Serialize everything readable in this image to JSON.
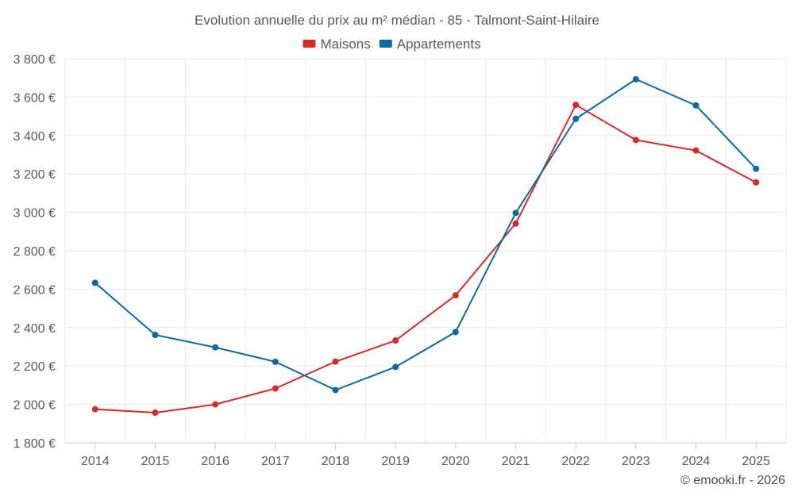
{
  "chart_data": {
    "type": "line",
    "title": "Evolution annuelle du prix au m² médian - 85 - Talmont-Saint-Hilaire",
    "xlabel": "",
    "ylabel": "",
    "categories": [
      "2014",
      "2015",
      "2016",
      "2017",
      "2018",
      "2019",
      "2020",
      "2021",
      "2022",
      "2023",
      "2024",
      "2025"
    ],
    "series": [
      {
        "name": "Maisons",
        "color": "#d42a2a",
        "values": [
          1975,
          1957,
          2000,
          2083,
          2223,
          2333,
          2568,
          2942,
          3560,
          3377,
          3322,
          3156
        ]
      },
      {
        "name": "Appartements",
        "color": "#0b6aa0",
        "values": [
          2633,
          2362,
          2297,
          2222,
          2075,
          2195,
          2377,
          2997,
          3487,
          3693,
          3557,
          3227
        ]
      }
    ],
    "ylim": [
      1800,
      3800
    ],
    "yticks": [
      1800,
      2000,
      2200,
      2400,
      2600,
      2800,
      3000,
      3200,
      3400,
      3600,
      3800
    ],
    "ytick_labels": [
      "1 800 €",
      "2 000 €",
      "2 200 €",
      "2 400 €",
      "2 600 €",
      "2 800 €",
      "3 000 €",
      "3 200 €",
      "3 400 €",
      "3 600 €",
      "3 800 €"
    ],
    "grid": true,
    "legend_position": "top-center",
    "credits": "© emooki.fr - 2026"
  }
}
